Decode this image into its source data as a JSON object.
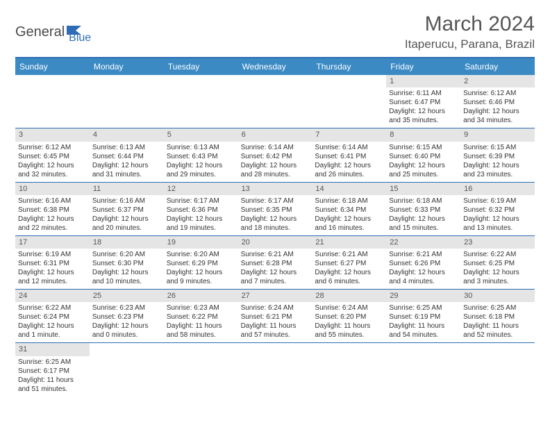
{
  "logo": {
    "part1": "General",
    "part2": "Blue"
  },
  "title": "March 2024",
  "location": "Itaperucu, Parana, Brazil",
  "colors": {
    "header_bg": "#3b8ac4",
    "border": "#2e6db5",
    "daynum_bg": "#e5e5e5",
    "text": "#333333",
    "title_text": "#555555"
  },
  "weekdays": [
    "Sunday",
    "Monday",
    "Tuesday",
    "Wednesday",
    "Thursday",
    "Friday",
    "Saturday"
  ],
  "weeks": [
    [
      null,
      null,
      null,
      null,
      null,
      {
        "n": "1",
        "sr": "Sunrise: 6:11 AM",
        "ss": "Sunset: 6:47 PM",
        "d1": "Daylight: 12 hours",
        "d2": "and 35 minutes."
      },
      {
        "n": "2",
        "sr": "Sunrise: 6:12 AM",
        "ss": "Sunset: 6:46 PM",
        "d1": "Daylight: 12 hours",
        "d2": "and 34 minutes."
      }
    ],
    [
      {
        "n": "3",
        "sr": "Sunrise: 6:12 AM",
        "ss": "Sunset: 6:45 PM",
        "d1": "Daylight: 12 hours",
        "d2": "and 32 minutes."
      },
      {
        "n": "4",
        "sr": "Sunrise: 6:13 AM",
        "ss": "Sunset: 6:44 PM",
        "d1": "Daylight: 12 hours",
        "d2": "and 31 minutes."
      },
      {
        "n": "5",
        "sr": "Sunrise: 6:13 AM",
        "ss": "Sunset: 6:43 PM",
        "d1": "Daylight: 12 hours",
        "d2": "and 29 minutes."
      },
      {
        "n": "6",
        "sr": "Sunrise: 6:14 AM",
        "ss": "Sunset: 6:42 PM",
        "d1": "Daylight: 12 hours",
        "d2": "and 28 minutes."
      },
      {
        "n": "7",
        "sr": "Sunrise: 6:14 AM",
        "ss": "Sunset: 6:41 PM",
        "d1": "Daylight: 12 hours",
        "d2": "and 26 minutes."
      },
      {
        "n": "8",
        "sr": "Sunrise: 6:15 AM",
        "ss": "Sunset: 6:40 PM",
        "d1": "Daylight: 12 hours",
        "d2": "and 25 minutes."
      },
      {
        "n": "9",
        "sr": "Sunrise: 6:15 AM",
        "ss": "Sunset: 6:39 PM",
        "d1": "Daylight: 12 hours",
        "d2": "and 23 minutes."
      }
    ],
    [
      {
        "n": "10",
        "sr": "Sunrise: 6:16 AM",
        "ss": "Sunset: 6:38 PM",
        "d1": "Daylight: 12 hours",
        "d2": "and 22 minutes."
      },
      {
        "n": "11",
        "sr": "Sunrise: 6:16 AM",
        "ss": "Sunset: 6:37 PM",
        "d1": "Daylight: 12 hours",
        "d2": "and 20 minutes."
      },
      {
        "n": "12",
        "sr": "Sunrise: 6:17 AM",
        "ss": "Sunset: 6:36 PM",
        "d1": "Daylight: 12 hours",
        "d2": "and 19 minutes."
      },
      {
        "n": "13",
        "sr": "Sunrise: 6:17 AM",
        "ss": "Sunset: 6:35 PM",
        "d1": "Daylight: 12 hours",
        "d2": "and 18 minutes."
      },
      {
        "n": "14",
        "sr": "Sunrise: 6:18 AM",
        "ss": "Sunset: 6:34 PM",
        "d1": "Daylight: 12 hours",
        "d2": "and 16 minutes."
      },
      {
        "n": "15",
        "sr": "Sunrise: 6:18 AM",
        "ss": "Sunset: 6:33 PM",
        "d1": "Daylight: 12 hours",
        "d2": "and 15 minutes."
      },
      {
        "n": "16",
        "sr": "Sunrise: 6:19 AM",
        "ss": "Sunset: 6:32 PM",
        "d1": "Daylight: 12 hours",
        "d2": "and 13 minutes."
      }
    ],
    [
      {
        "n": "17",
        "sr": "Sunrise: 6:19 AM",
        "ss": "Sunset: 6:31 PM",
        "d1": "Daylight: 12 hours",
        "d2": "and 12 minutes."
      },
      {
        "n": "18",
        "sr": "Sunrise: 6:20 AM",
        "ss": "Sunset: 6:30 PM",
        "d1": "Daylight: 12 hours",
        "d2": "and 10 minutes."
      },
      {
        "n": "19",
        "sr": "Sunrise: 6:20 AM",
        "ss": "Sunset: 6:29 PM",
        "d1": "Daylight: 12 hours",
        "d2": "and 9 minutes."
      },
      {
        "n": "20",
        "sr": "Sunrise: 6:21 AM",
        "ss": "Sunset: 6:28 PM",
        "d1": "Daylight: 12 hours",
        "d2": "and 7 minutes."
      },
      {
        "n": "21",
        "sr": "Sunrise: 6:21 AM",
        "ss": "Sunset: 6:27 PM",
        "d1": "Daylight: 12 hours",
        "d2": "and 6 minutes."
      },
      {
        "n": "22",
        "sr": "Sunrise: 6:21 AM",
        "ss": "Sunset: 6:26 PM",
        "d1": "Daylight: 12 hours",
        "d2": "and 4 minutes."
      },
      {
        "n": "23",
        "sr": "Sunrise: 6:22 AM",
        "ss": "Sunset: 6:25 PM",
        "d1": "Daylight: 12 hours",
        "d2": "and 3 minutes."
      }
    ],
    [
      {
        "n": "24",
        "sr": "Sunrise: 6:22 AM",
        "ss": "Sunset: 6:24 PM",
        "d1": "Daylight: 12 hours",
        "d2": "and 1 minute."
      },
      {
        "n": "25",
        "sr": "Sunrise: 6:23 AM",
        "ss": "Sunset: 6:23 PM",
        "d1": "Daylight: 12 hours",
        "d2": "and 0 minutes."
      },
      {
        "n": "26",
        "sr": "Sunrise: 6:23 AM",
        "ss": "Sunset: 6:22 PM",
        "d1": "Daylight: 11 hours",
        "d2": "and 58 minutes."
      },
      {
        "n": "27",
        "sr": "Sunrise: 6:24 AM",
        "ss": "Sunset: 6:21 PM",
        "d1": "Daylight: 11 hours",
        "d2": "and 57 minutes."
      },
      {
        "n": "28",
        "sr": "Sunrise: 6:24 AM",
        "ss": "Sunset: 6:20 PM",
        "d1": "Daylight: 11 hours",
        "d2": "and 55 minutes."
      },
      {
        "n": "29",
        "sr": "Sunrise: 6:25 AM",
        "ss": "Sunset: 6:19 PM",
        "d1": "Daylight: 11 hours",
        "d2": "and 54 minutes."
      },
      {
        "n": "30",
        "sr": "Sunrise: 6:25 AM",
        "ss": "Sunset: 6:18 PM",
        "d1": "Daylight: 11 hours",
        "d2": "and 52 minutes."
      }
    ],
    [
      {
        "n": "31",
        "sr": "Sunrise: 6:25 AM",
        "ss": "Sunset: 6:17 PM",
        "d1": "Daylight: 11 hours",
        "d2": "and 51 minutes."
      },
      null,
      null,
      null,
      null,
      null,
      null
    ]
  ]
}
